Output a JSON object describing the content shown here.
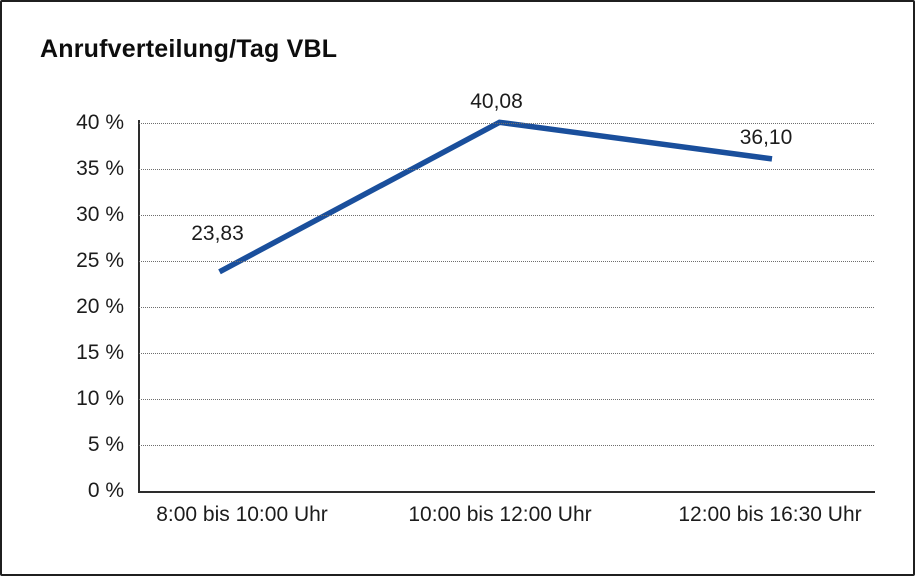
{
  "chart_data": {
    "type": "line",
    "title": "Anrufverteilung/Tag VBL",
    "categories": [
      "8:00 bis 10:00 Uhr",
      "10:00 bis 12:00 Uhr",
      "12:00 bis 16:30 Uhr"
    ],
    "series": [
      {
        "values": [
          23.83,
          40.08,
          36.1
        ],
        "point_labels": [
          "23,83",
          "40,08",
          "36,10"
        ],
        "color": "#1a4f9c"
      }
    ],
    "xlabel": "",
    "ylabel": "",
    "ylim": [
      0,
      40
    ],
    "ytick_step": 5,
    "ytick_labels": [
      "0 %",
      "5 %",
      "10 %",
      "15 %",
      "20 %",
      "25 %",
      "30 %",
      "35 %",
      "40 %"
    ],
    "grid": "horizontal-dotted",
    "legend": "none"
  },
  "colors": {
    "line": "#1a4f9c",
    "grid": "#6e6e6e",
    "axis": "#2d2d2d",
    "text": "#1c1c1c",
    "title": "#0d0d0d",
    "background": "#ffffff",
    "frame_border": "#1f1f1f"
  }
}
